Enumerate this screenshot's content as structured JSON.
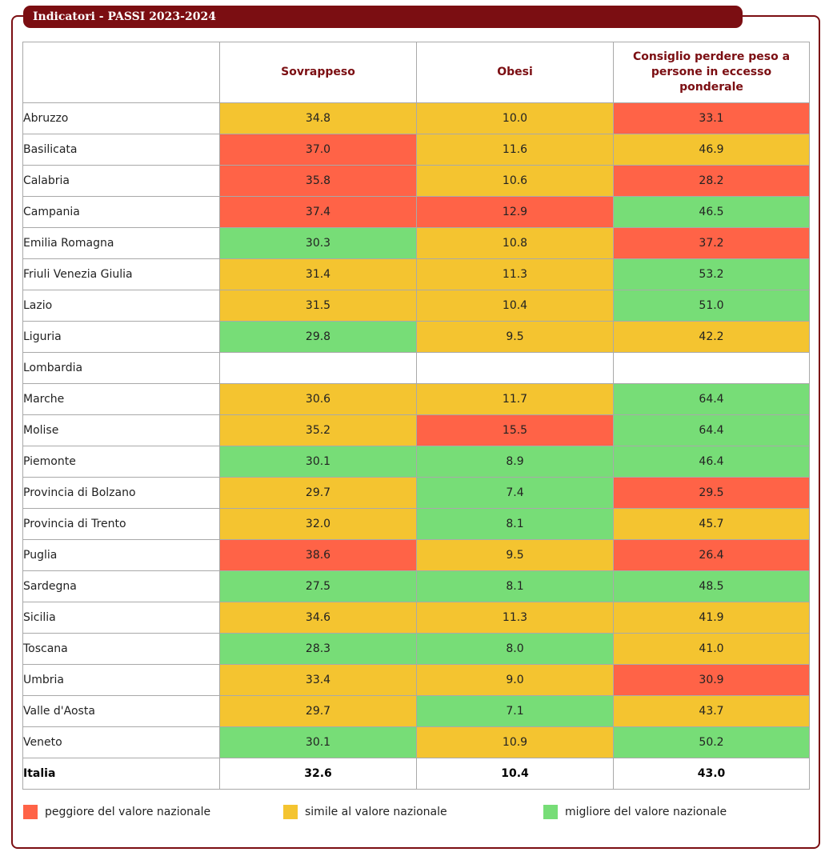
{
  "title": "Indicatori - PASSI 2023-2024",
  "columns": {
    "region": "",
    "sovrappeso": "Sovrappeso",
    "obesi": "Obesi",
    "consiglio": "Consiglio perdere peso a persone in eccesso ponderale"
  },
  "colors": {
    "worse": "#ff6347",
    "similar": "#f4c430",
    "better": "#77dd77",
    "accent": "#7b0e12"
  },
  "rows": [
    {
      "region": "Abruzzo",
      "sovrappeso": {
        "value": "34.8",
        "status": "similar"
      },
      "obesi": {
        "value": "10.0",
        "status": "similar"
      },
      "consiglio": {
        "value": "33.1",
        "status": "worse"
      }
    },
    {
      "region": "Basilicata",
      "sovrappeso": {
        "value": "37.0",
        "status": "worse"
      },
      "obesi": {
        "value": "11.6",
        "status": "similar"
      },
      "consiglio": {
        "value": "46.9",
        "status": "similar"
      }
    },
    {
      "region": "Calabria",
      "sovrappeso": {
        "value": "35.8",
        "status": "worse"
      },
      "obesi": {
        "value": "10.6",
        "status": "similar"
      },
      "consiglio": {
        "value": "28.2",
        "status": "worse"
      }
    },
    {
      "region": "Campania",
      "sovrappeso": {
        "value": "37.4",
        "status": "worse"
      },
      "obesi": {
        "value": "12.9",
        "status": "worse"
      },
      "consiglio": {
        "value": "46.5",
        "status": "better"
      }
    },
    {
      "region": "Emilia Romagna",
      "sovrappeso": {
        "value": "30.3",
        "status": "better"
      },
      "obesi": {
        "value": "10.8",
        "status": "similar"
      },
      "consiglio": {
        "value": "37.2",
        "status": "worse"
      }
    },
    {
      "region": "Friuli Venezia Giulia",
      "sovrappeso": {
        "value": "31.4",
        "status": "similar"
      },
      "obesi": {
        "value": "11.3",
        "status": "similar"
      },
      "consiglio": {
        "value": "53.2",
        "status": "better"
      }
    },
    {
      "region": "Lazio",
      "sovrappeso": {
        "value": "31.5",
        "status": "similar"
      },
      "obesi": {
        "value": "10.4",
        "status": "similar"
      },
      "consiglio": {
        "value": "51.0",
        "status": "better"
      }
    },
    {
      "region": "Liguria",
      "sovrappeso": {
        "value": "29.8",
        "status": "better"
      },
      "obesi": {
        "value": "9.5",
        "status": "similar"
      },
      "consiglio": {
        "value": "42.2",
        "status": "similar"
      }
    },
    {
      "region": "Lombardia",
      "sovrappeso": {
        "value": "",
        "status": "none"
      },
      "obesi": {
        "value": "",
        "status": "none"
      },
      "consiglio": {
        "value": "",
        "status": "none"
      }
    },
    {
      "region": "Marche",
      "sovrappeso": {
        "value": "30.6",
        "status": "similar"
      },
      "obesi": {
        "value": "11.7",
        "status": "similar"
      },
      "consiglio": {
        "value": "64.4",
        "status": "better"
      }
    },
    {
      "region": "Molise",
      "sovrappeso": {
        "value": "35.2",
        "status": "similar"
      },
      "obesi": {
        "value": "15.5",
        "status": "worse"
      },
      "consiglio": {
        "value": "64.4",
        "status": "better"
      }
    },
    {
      "region": "Piemonte",
      "sovrappeso": {
        "value": "30.1",
        "status": "better"
      },
      "obesi": {
        "value": "8.9",
        "status": "better"
      },
      "consiglio": {
        "value": "46.4",
        "status": "better"
      }
    },
    {
      "region": "Provincia di Bolzano",
      "sovrappeso": {
        "value": "29.7",
        "status": "similar"
      },
      "obesi": {
        "value": "7.4",
        "status": "better"
      },
      "consiglio": {
        "value": "29.5",
        "status": "worse"
      }
    },
    {
      "region": "Provincia di Trento",
      "sovrappeso": {
        "value": "32.0",
        "status": "similar"
      },
      "obesi": {
        "value": "8.1",
        "status": "better"
      },
      "consiglio": {
        "value": "45.7",
        "status": "similar"
      }
    },
    {
      "region": "Puglia",
      "sovrappeso": {
        "value": "38.6",
        "status": "worse"
      },
      "obesi": {
        "value": "9.5",
        "status": "similar"
      },
      "consiglio": {
        "value": "26.4",
        "status": "worse"
      }
    },
    {
      "region": "Sardegna",
      "sovrappeso": {
        "value": "27.5",
        "status": "better"
      },
      "obesi": {
        "value": "8.1",
        "status": "better"
      },
      "consiglio": {
        "value": "48.5",
        "status": "better"
      }
    },
    {
      "region": "Sicilia",
      "sovrappeso": {
        "value": "34.6",
        "status": "similar"
      },
      "obesi": {
        "value": "11.3",
        "status": "similar"
      },
      "consiglio": {
        "value": "41.9",
        "status": "similar"
      }
    },
    {
      "region": "Toscana",
      "sovrappeso": {
        "value": "28.3",
        "status": "better"
      },
      "obesi": {
        "value": "8.0",
        "status": "better"
      },
      "consiglio": {
        "value": "41.0",
        "status": "similar"
      }
    },
    {
      "region": "Umbria",
      "sovrappeso": {
        "value": "33.4",
        "status": "similar"
      },
      "obesi": {
        "value": "9.0",
        "status": "similar"
      },
      "consiglio": {
        "value": "30.9",
        "status": "worse"
      }
    },
    {
      "region": "Valle d'Aosta",
      "sovrappeso": {
        "value": "29.7",
        "status": "similar"
      },
      "obesi": {
        "value": "7.1",
        "status": "better"
      },
      "consiglio": {
        "value": "43.7",
        "status": "similar"
      }
    },
    {
      "region": "Veneto",
      "sovrappeso": {
        "value": "30.1",
        "status": "better"
      },
      "obesi": {
        "value": "10.9",
        "status": "similar"
      },
      "consiglio": {
        "value": "50.2",
        "status": "better"
      }
    }
  ],
  "total": {
    "region": "Italia",
    "sovrappeso": "32.6",
    "obesi": "10.4",
    "consiglio": "43.0"
  },
  "legend": [
    {
      "status": "worse",
      "label": "peggiore del valore nazionale"
    },
    {
      "status": "similar",
      "label": "simile al valore nazionale"
    },
    {
      "status": "better",
      "label": "migliore del valore nazionale"
    }
  ]
}
